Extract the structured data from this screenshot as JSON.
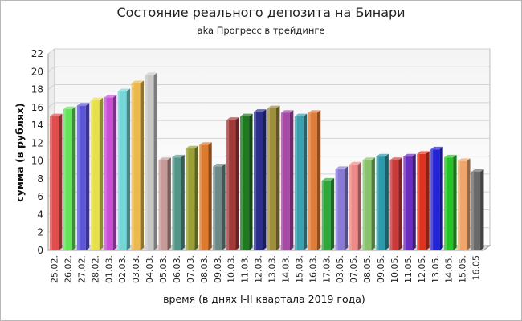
{
  "chart_data": {
    "type": "bar",
    "title": "Состояние реального депозита на Бинари",
    "subtitle": "aka Прогресс в трейдинге",
    "xlabel": "время (в днях I-II квартала 2019 года)",
    "ylabel": "сумма (в рублях)",
    "ylim": [
      0,
      22
    ],
    "yticks": [
      "0",
      "2",
      "4",
      "6",
      "8",
      "10",
      "12",
      "14",
      "16",
      "18",
      "20",
      "22"
    ],
    "grid": true,
    "categories": [
      "25.02.",
      "26.02.",
      "27.02.",
      "28.02.",
      "01.03.",
      "02.03.",
      "03.03.",
      "04.03.",
      "05.03.",
      "06.03.",
      "07.03.",
      "08.03.",
      "09.03.",
      "10.03.",
      "11.03.",
      "12.03.",
      "13.03.",
      "14.03.",
      "15.03.",
      "16.03.",
      "17.03.",
      "03.05.",
      "07.05.",
      "08.05.",
      "09.05.",
      "10.05.",
      "11.05.",
      "12.05.",
      "13.05.",
      "14.05.",
      "15.05.",
      "16.05"
    ],
    "values": [
      15.0,
      15.8,
      16.2,
      16.8,
      17.1,
      17.8,
      18.7,
      19.6,
      10.1,
      10.4,
      11.4,
      11.8,
      9.4,
      14.6,
      15.0,
      15.5,
      15.9,
      15.4,
      15.0,
      15.4,
      7.8,
      9.1,
      9.6,
      10.1,
      10.5,
      10.1,
      10.5,
      10.8,
      11.3,
      10.4,
      10.0,
      8.8
    ],
    "colors": [
      "#e34c4c",
      "#62e35a",
      "#5e56d8",
      "#e6e04c",
      "#c94fd6",
      "#73d7d8",
      "#ecb94e",
      "#c8c8c8",
      "#c69a96",
      "#52968a",
      "#9aa036",
      "#dd7a2e",
      "#6e8a86",
      "#a33a3a",
      "#1e7a1e",
      "#2b2f8c",
      "#a08e3c",
      "#a64aa6",
      "#3b9fae",
      "#e07c3a",
      "#2fa83a",
      "#8a7ad8",
      "#ee8a8a",
      "#88c46c",
      "#2d9aaa",
      "#c93a3a",
      "#6a2ec0",
      "#e0341f",
      "#2424d6",
      "#24c424",
      "#f0a66a",
      "#6a6a6a"
    ]
  }
}
